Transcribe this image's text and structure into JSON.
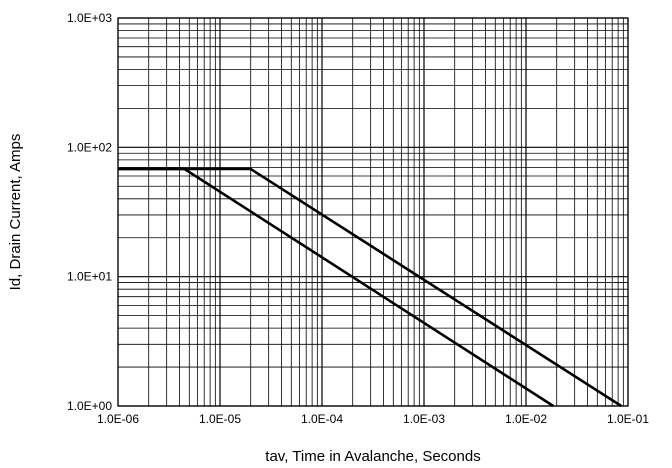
{
  "chart_data": {
    "type": "line",
    "x_scale": "log",
    "y_scale": "log",
    "xlabel": "tav, Time in Avalanche, Seconds",
    "ylabel": "Id, Drain Current, Amps",
    "xlim": [
      1e-06,
      0.1
    ],
    "ylim": [
      1,
      1000
    ],
    "grid": true,
    "x_ticks": [
      {
        "value": 1e-06,
        "label": "1.0E-06"
      },
      {
        "value": 1e-05,
        "label": "1.0E-05"
      },
      {
        "value": 0.0001,
        "label": "1.0E-04"
      },
      {
        "value": 0.001,
        "label": "1.0E-03"
      },
      {
        "value": 0.01,
        "label": "1.0E-02"
      },
      {
        "value": 0.1,
        "label": "1.0E-01"
      }
    ],
    "y_ticks": [
      {
        "value": 1,
        "label": "1.0E+00"
      },
      {
        "value": 10,
        "label": "1.0E+01"
      },
      {
        "value": 100,
        "label": "1.0E+02"
      },
      {
        "value": 1000,
        "label": "1.0E+03"
      }
    ],
    "series": [
      {
        "x": [
          1e-06,
          4.5e-06,
          0.0185
        ],
        "y": [
          68,
          68,
          1
        ]
      },
      {
        "x": [
          1e-06,
          2e-05,
          0.086
        ],
        "y": [
          68,
          68,
          1
        ]
      }
    ],
    "line_color": "#000000",
    "grid_color": "#000000"
  }
}
